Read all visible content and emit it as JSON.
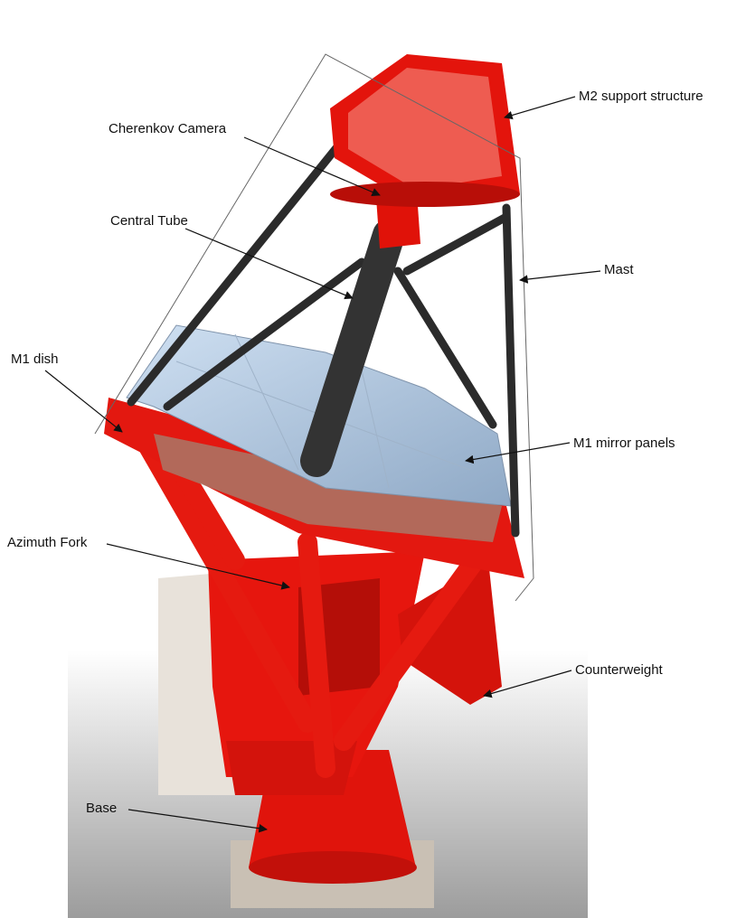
{
  "labels": [
    "M2 support structure",
    "Cherenkov Camera",
    "Central Tube",
    "Mast",
    "M1 dish",
    "M1 mirror panels",
    "Azimuth Fork",
    "Counterweight",
    "Base"
  ]
}
